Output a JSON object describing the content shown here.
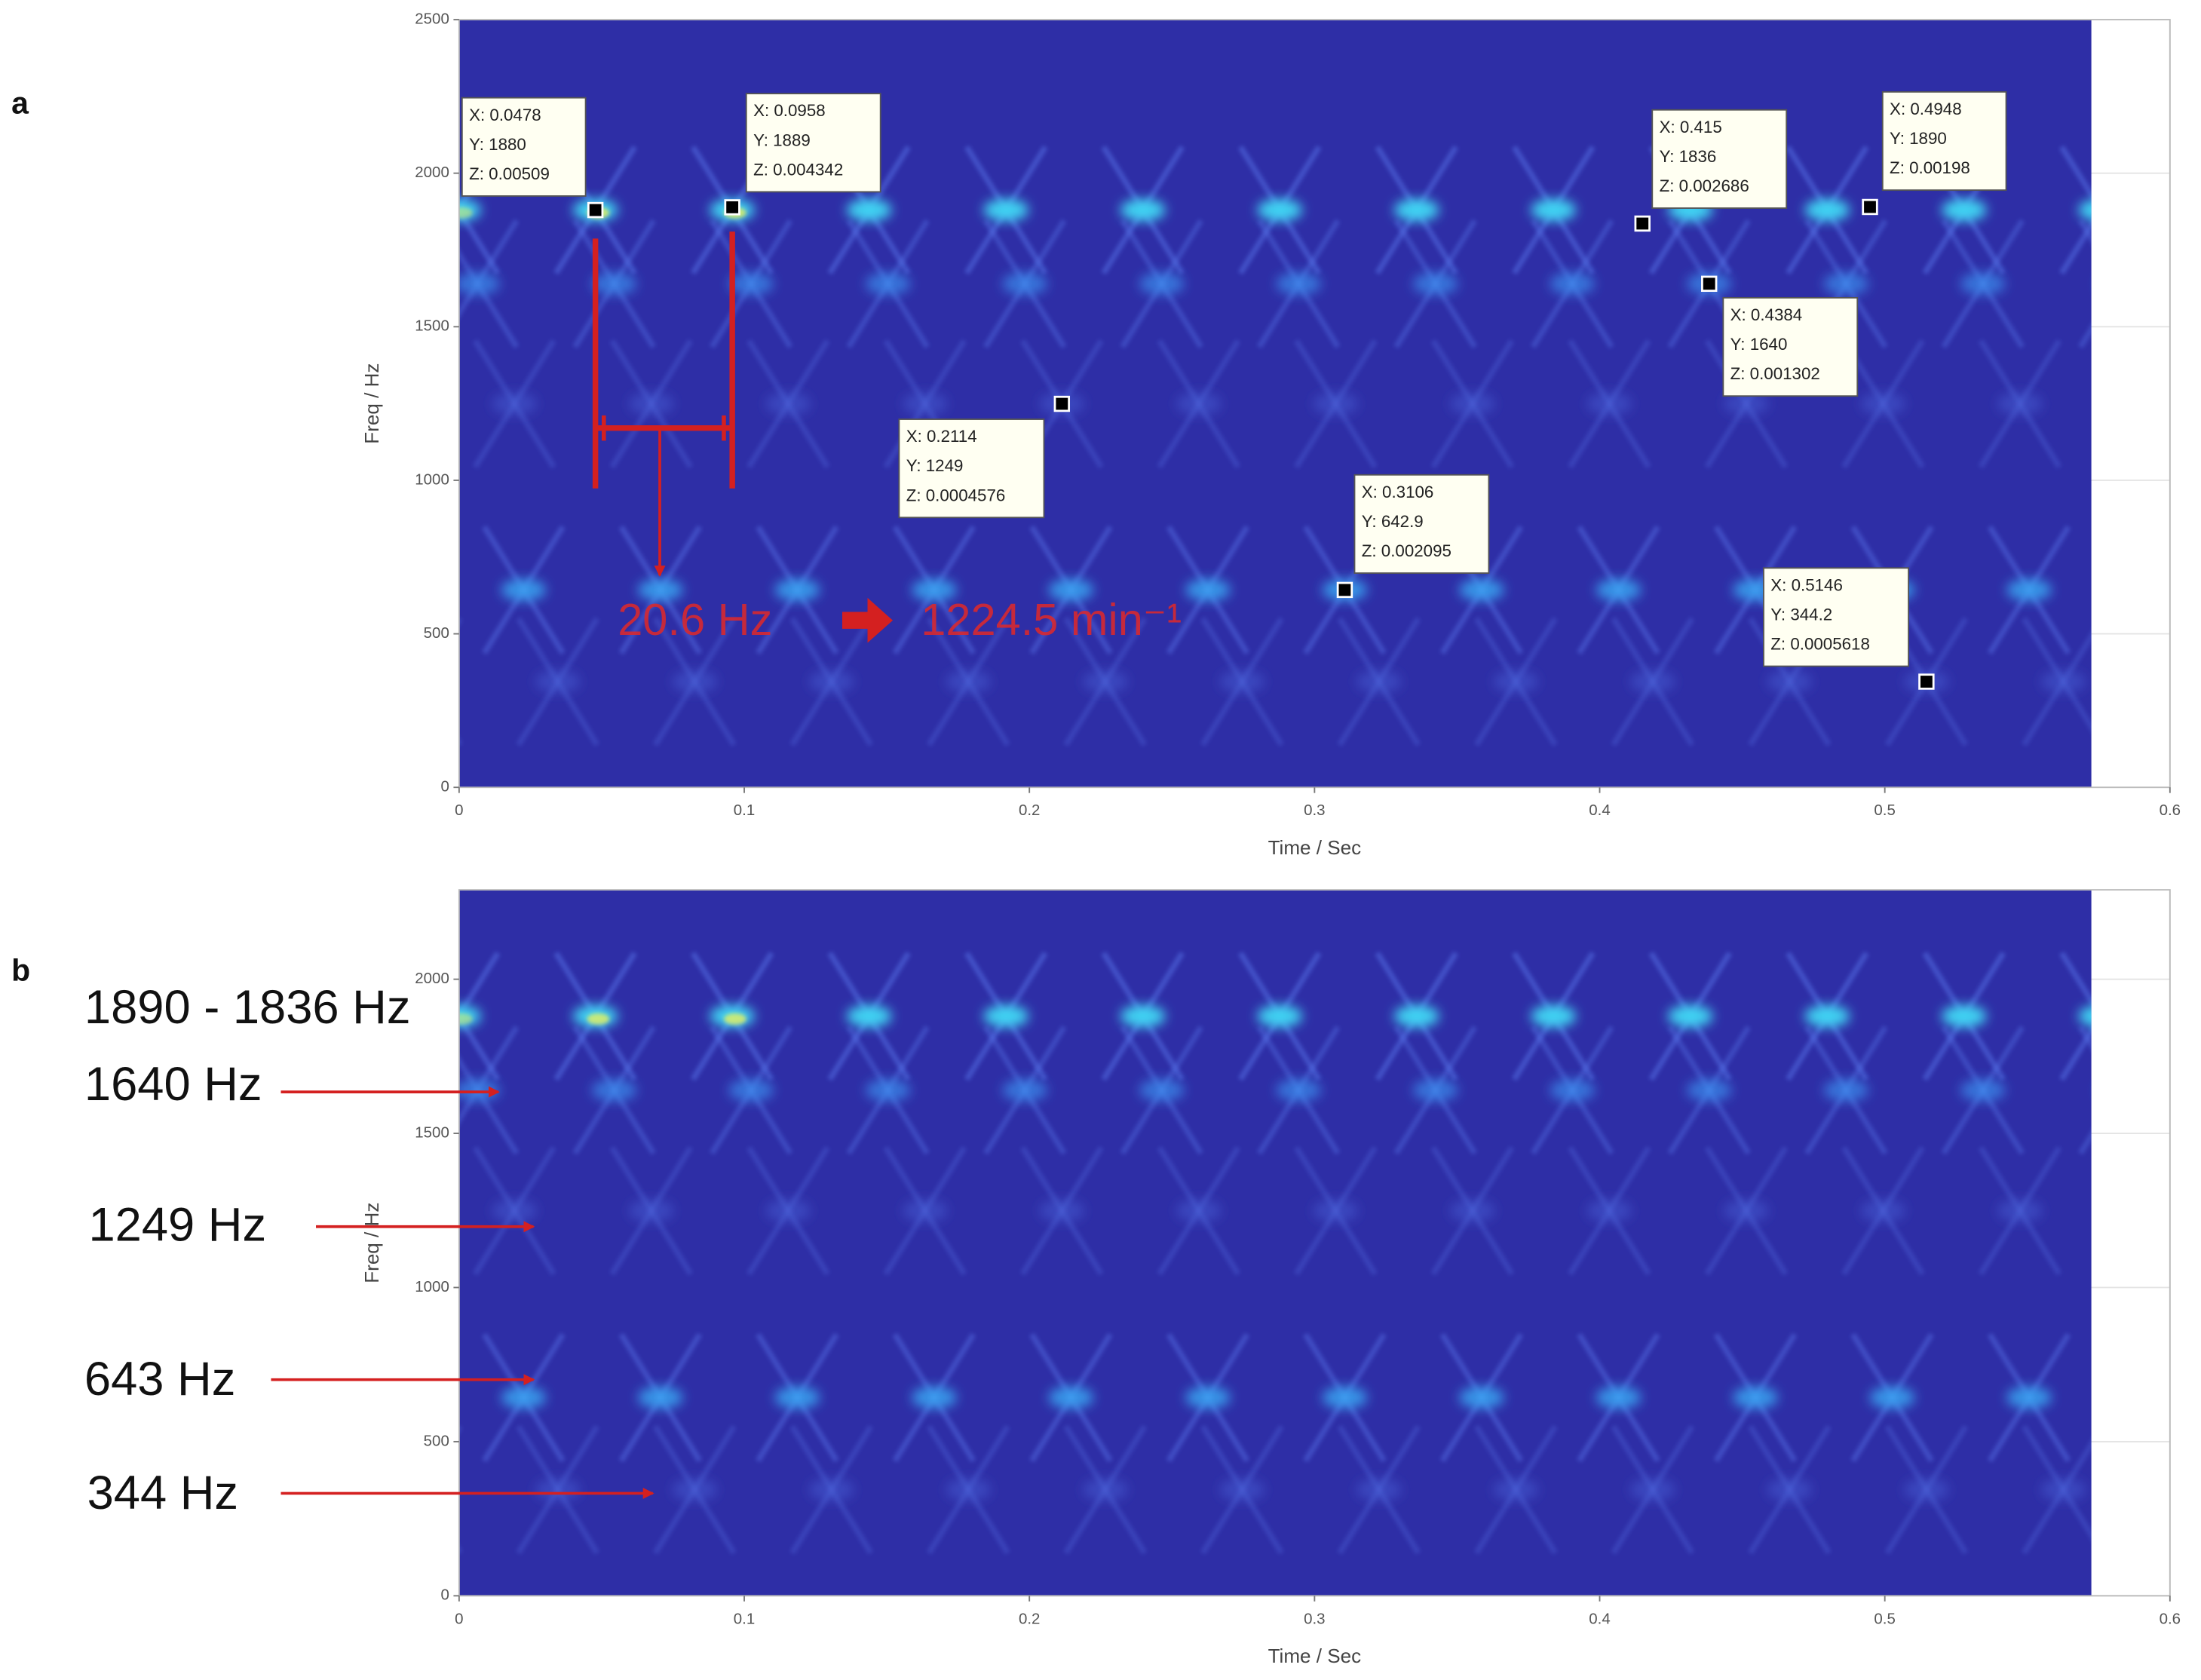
{
  "chart_data": [
    {
      "type": "spectrogram",
      "panel": "a",
      "xlabel": "Time / Sec",
      "ylabel": "Freq / Hz",
      "xlim": [
        0,
        0.6
      ],
      "xticks": [
        0,
        0.1,
        0.2,
        0.3,
        0.4,
        0.5,
        0.6
      ],
      "ylim": [
        0,
        2500
      ],
      "yticks": [
        0,
        500,
        1000,
        1500,
        2000,
        2500
      ],
      "grid": true,
      "data_tips": [
        {
          "x": 0.0478,
          "y": 1880,
          "lines": [
            "X: 0.0478",
            "Y: 1880",
            "Z: 0.00509"
          ]
        },
        {
          "x": 0.0958,
          "y": 1889,
          "lines": [
            "X: 0.0958",
            "Y: 1889",
            "Z: 0.004342"
          ]
        },
        {
          "x": 0.2114,
          "y": 1249,
          "lines": [
            "X: 0.2114",
            "Y: 1249",
            "Z: 0.0004576"
          ]
        },
        {
          "x": 0.3106,
          "y": 642.9,
          "lines": [
            "X: 0.3106",
            "Y: 642.9",
            "Z: 0.002095"
          ]
        },
        {
          "x": 0.415,
          "y": 1836,
          "lines": [
            "X: 0.415",
            "Y: 1836",
            "Z: 0.002686"
          ]
        },
        {
          "x": 0.4384,
          "y": 1640,
          "lines": [
            "X: 0.4384",
            "Y: 1640",
            "Z: 0.001302"
          ]
        },
        {
          "x": 0.4948,
          "y": 1890,
          "lines": [
            "X: 0.4948",
            "Y: 1890",
            "Z: 0.00198"
          ]
        },
        {
          "x": 0.5146,
          "y": 344.2,
          "lines": [
            "X: 0.5146",
            "Y: 344.2",
            "Z: 0.0005618"
          ]
        }
      ],
      "annotations": [
        "20.6 Hz",
        "1224.5 min⁻¹"
      ]
    },
    {
      "type": "spectrogram",
      "panel": "b",
      "xlabel": "Time / Sec",
      "ylabel": "Freq / Hz",
      "xlim": [
        0,
        0.6
      ],
      "xticks": [
        0,
        0.1,
        0.2,
        0.3,
        0.4,
        0.5,
        0.6
      ],
      "ylim": [
        0,
        2290
      ],
      "yticks": [
        0,
        500,
        1000,
        1500,
        2000
      ],
      "grid": true,
      "annotations": [
        "1890 - 1836 Hz",
        "1640 Hz",
        "1249 Hz",
        "643 Hz",
        "344 Hz"
      ]
    }
  ]
}
